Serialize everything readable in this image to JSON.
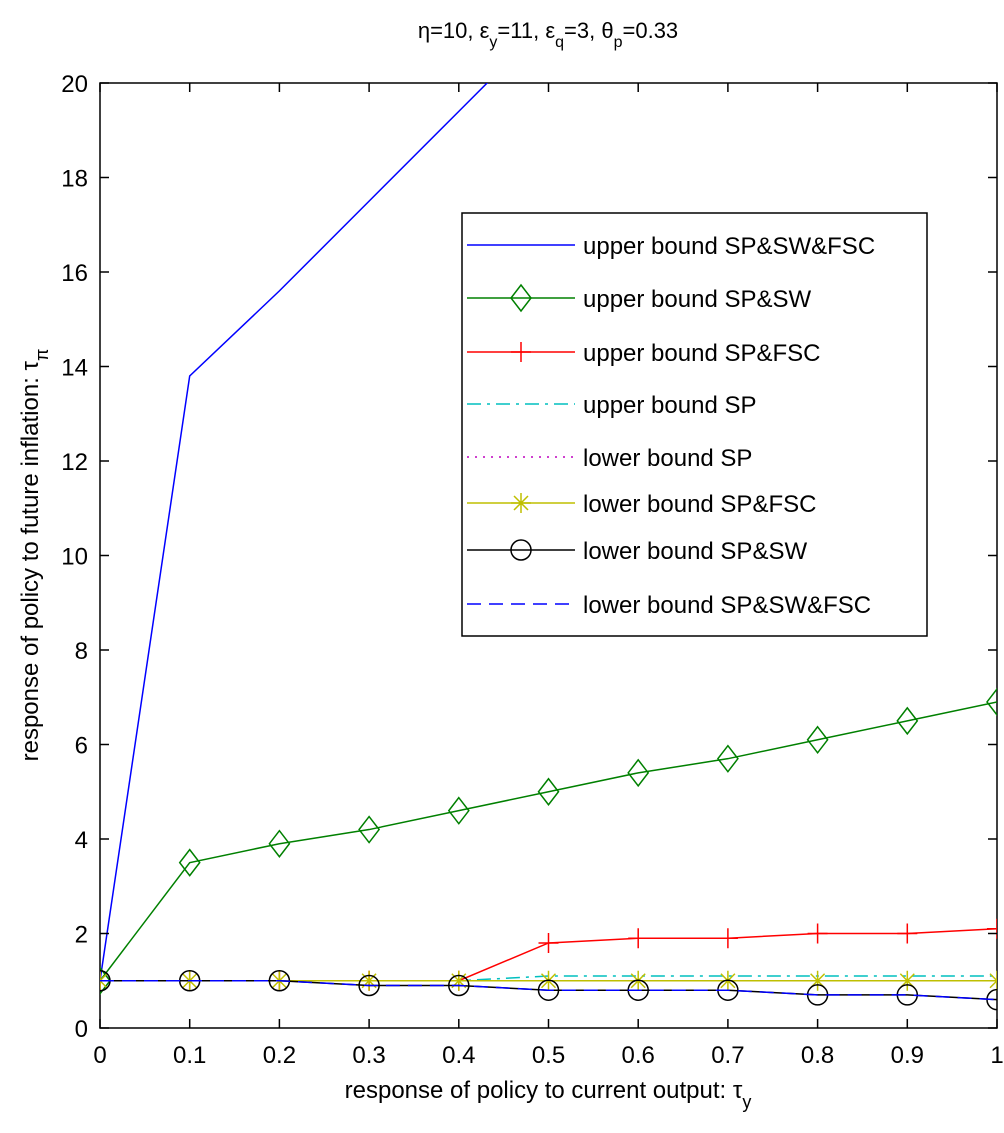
{
  "chart_data": {
    "type": "line",
    "title": [
      "η=10, ε",
      "y",
      "=11, ε",
      "q",
      "=3, θ",
      "p",
      "=0.33"
    ],
    "xlabel": [
      "response of policy to current output: τ",
      "y"
    ],
    "ylabel": [
      "response of policy to future inflation: τ",
      "π"
    ],
    "x": [
      0,
      0.1,
      0.2,
      0.3,
      0.4,
      0.5,
      0.6,
      0.7,
      0.8,
      0.9,
      1
    ],
    "xlim": [
      0,
      1
    ],
    "xticks": [
      0,
      0.1,
      0.2,
      0.3,
      0.4,
      0.5,
      0.6,
      0.7,
      0.8,
      0.9,
      1
    ],
    "ylim": [
      0,
      20
    ],
    "yticks": [
      0,
      2,
      4,
      6,
      8,
      10,
      12,
      14,
      16,
      18,
      20
    ],
    "grid": false,
    "legend": "upper right",
    "series": [
      {
        "name": "upper bound SP&SW&FSC",
        "color": "#0000ff",
        "dash": "solid",
        "marker": "none",
        "values": [
          1,
          13.8,
          15.6,
          17.5,
          19.4,
          21.3,
          null,
          null,
          null,
          null,
          null
        ]
      },
      {
        "name": "upper bound SP&SW",
        "color": "#008000",
        "dash": "solid",
        "marker": "diamond",
        "values": [
          1,
          3.5,
          3.9,
          4.2,
          4.6,
          5.0,
          5.4,
          5.7,
          6.1,
          6.5,
          6.9
        ]
      },
      {
        "name": "upper bound SP&FSC",
        "color": "#ff0000",
        "dash": "solid",
        "marker": "plus",
        "values": [
          1,
          1,
          1,
          1,
          1,
          1.8,
          1.9,
          1.9,
          2.0,
          2.0,
          2.1
        ]
      },
      {
        "name": "upper bound SP",
        "color": "#00bfbf",
        "dash": "dashdot",
        "marker": "none",
        "values": [
          1,
          1,
          1,
          1,
          1,
          1.1,
          1.1,
          1.1,
          1.1,
          1.1,
          1.1
        ]
      },
      {
        "name": "lower bound SP",
        "color": "#bf00bf",
        "dash": "dotted",
        "marker": "none",
        "values": [
          1,
          1,
          1,
          1,
          1,
          1,
          1,
          1,
          1,
          1,
          1
        ]
      },
      {
        "name": "lower bound SP&FSC",
        "color": "#bfbf00",
        "dash": "solid",
        "marker": "star",
        "values": [
          1,
          1,
          1,
          1,
          1,
          1,
          1,
          1,
          1,
          1,
          1
        ]
      },
      {
        "name": "lower bound SP&SW",
        "color": "#000000",
        "dash": "solid",
        "marker": "circle",
        "values": [
          1,
          1,
          1,
          0.9,
          0.9,
          0.8,
          0.8,
          0.8,
          0.7,
          0.7,
          0.6
        ]
      },
      {
        "name": "lower bound SP&SW&FSC",
        "color": "#0000ff",
        "dash": "dashed",
        "marker": "none",
        "values": [
          1,
          1,
          1,
          0.9,
          0.9,
          0.8,
          0.8,
          0.8,
          0.7,
          0.7,
          0.6
        ]
      }
    ]
  }
}
